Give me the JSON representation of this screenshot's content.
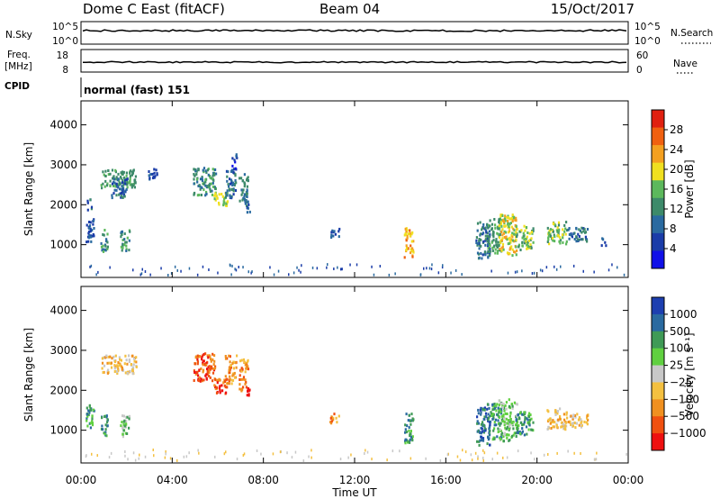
{
  "header": {
    "station": "Dome C East (fitACF)",
    "beam": "Beam 04",
    "date": "15/Oct/2017"
  },
  "strips": {
    "sky": {
      "left_label": "N.Sky",
      "left_ticks": [
        "10^5",
        "10^0"
      ],
      "right_label": "N.Search",
      "right_ticks": [
        "10^5",
        "10^0"
      ]
    },
    "freq": {
      "left_label_1": "Freq.",
      "left_label_2": "[MHz]",
      "left_ticks": [
        "18",
        "8"
      ],
      "right_label": "Nave",
      "right_ticks": [
        "60",
        "0"
      ]
    },
    "cpid": {
      "label": "CPID",
      "value": "normal (fast) 151"
    }
  },
  "colors": {
    "power": [
      "#1010e8",
      "#1a3ca8",
      "#2a6aa0",
      "#3d8a6a",
      "#5cb85c",
      "#f0e020",
      "#f4a020",
      "#f06010",
      "#e02010"
    ],
    "velocity": [
      "#ee1010",
      "#f05010",
      "#f09020",
      "#f4c040",
      "#c8c8c8",
      "#60d040",
      "#3f9a56",
      "#2a6aa0",
      "#1d3fb0"
    ]
  },
  "chart_data": [
    {
      "type": "heatmap",
      "name": "power-panel",
      "xlabel": "",
      "ylabel": "Slant Range [km]",
      "xlim": [
        0,
        24
      ],
      "ylim": [
        180,
        4600
      ],
      "x_ticks": [
        "00:00",
        "04:00",
        "08:00",
        "12:00",
        "16:00",
        "20:00",
        "00:00"
      ],
      "x_tick_values": [
        0,
        4,
        8,
        12,
        16,
        20,
        24
      ],
      "y_ticks": [
        1000,
        2000,
        3000,
        4000
      ],
      "colorbar": {
        "label": "Power [dB]",
        "ticks": [
          "4",
          "8",
          "12",
          "16",
          "20",
          "24",
          "28"
        ],
        "range": [
          0,
          32
        ]
      },
      "regions": [
        {
          "t0": 0.2,
          "t1": 0.55,
          "r0": 1050,
          "r1": 1700,
          "v": 7
        },
        {
          "t0": 0.25,
          "t1": 0.45,
          "r0": 1900,
          "r1": 2200,
          "v": 8
        },
        {
          "t0": 0.85,
          "t1": 1.15,
          "r0": 850,
          "r1": 1400,
          "v": 12
        },
        {
          "t0": 1.7,
          "t1": 2.1,
          "r0": 850,
          "r1": 1400,
          "v": 13
        },
        {
          "t0": 0.85,
          "t1": 2.4,
          "r0": 2450,
          "r1": 2900,
          "v": 14
        },
        {
          "t0": 1.3,
          "t1": 2.0,
          "r0": 2200,
          "r1": 2700,
          "v": 9
        },
        {
          "t0": 2.9,
          "t1": 3.3,
          "r0": 2650,
          "r1": 2950,
          "v": 7
        },
        {
          "t0": 4.9,
          "t1": 5.9,
          "r0": 2250,
          "r1": 2950,
          "v": 13
        },
        {
          "t0": 5.8,
          "t1": 6.4,
          "r0": 1950,
          "r1": 2350,
          "v": 18
        },
        {
          "t0": 6.3,
          "t1": 6.8,
          "r0": 2200,
          "r1": 2900,
          "v": 10
        },
        {
          "t0": 6.9,
          "t1": 7.3,
          "r0": 2000,
          "r1": 2800,
          "v": 11
        },
        {
          "t0": 7.25,
          "t1": 7.4,
          "r0": 1750,
          "r1": 2100,
          "v": 6
        },
        {
          "t0": 6.6,
          "t1": 6.8,
          "r0": 2800,
          "r1": 3300,
          "v": 6
        },
        {
          "t0": 10.9,
          "t1": 11.3,
          "r0": 1200,
          "r1": 1450,
          "v": 7
        },
        {
          "t0": 14.15,
          "t1": 14.55,
          "r0": 700,
          "r1": 1450,
          "v": 22
        },
        {
          "t0": 17.3,
          "t1": 17.9,
          "r0": 650,
          "r1": 1600,
          "v": 10
        },
        {
          "t0": 17.8,
          "t1": 18.4,
          "r0": 800,
          "r1": 1700,
          "v": 14
        },
        {
          "t0": 18.3,
          "t1": 19.1,
          "r0": 750,
          "r1": 1800,
          "v": 20
        },
        {
          "t0": 19.0,
          "t1": 19.8,
          "r0": 900,
          "r1": 1500,
          "v": 17
        },
        {
          "t0": 20.4,
          "t1": 21.3,
          "r0": 1050,
          "r1": 1600,
          "v": 16
        },
        {
          "t0": 21.3,
          "t1": 22.2,
          "r0": 1100,
          "r1": 1450,
          "v": 9
        },
        {
          "t0": 22.8,
          "t1": 23.0,
          "r0": 1000,
          "r1": 1200,
          "v": 6
        }
      ]
    },
    {
      "type": "heatmap",
      "name": "velocity-panel",
      "xlabel": "Time UT",
      "ylabel": "Slant Range [km]",
      "xlim": [
        0,
        24
      ],
      "ylim": [
        180,
        4600
      ],
      "x_ticks": [
        "00:00",
        "04:00",
        "08:00",
        "12:00",
        "16:00",
        "20:00",
        "00:00"
      ],
      "x_tick_values": [
        0,
        4,
        8,
        12,
        16,
        20,
        24
      ],
      "y_ticks": [
        1000,
        2000,
        3000,
        4000
      ],
      "colorbar": {
        "label": "Velocity [m s⁻¹]",
        "ticks": [
          "1000",
          "500",
          "100",
          "25",
          "−25",
          "−100",
          "−500",
          "−1000"
        ]
      },
      "regions": [
        {
          "t0": 0.2,
          "t1": 0.55,
          "r0": 1050,
          "r1": 1700,
          "v": 6
        },
        {
          "t0": 0.85,
          "t1": 1.15,
          "r0": 850,
          "r1": 1400,
          "v": 6
        },
        {
          "t0": 1.7,
          "t1": 2.1,
          "r0": 850,
          "r1": 1400,
          "v": 5
        },
        {
          "t0": 0.85,
          "t1": 2.4,
          "r0": 2450,
          "r1": 2900,
          "v": 3
        },
        {
          "t0": 4.9,
          "t1": 5.9,
          "r0": 2250,
          "r1": 2950,
          "v": 1
        },
        {
          "t0": 5.8,
          "t1": 6.4,
          "r0": 1950,
          "r1": 2350,
          "v": 1
        },
        {
          "t0": 6.3,
          "t1": 6.8,
          "r0": 2200,
          "r1": 2900,
          "v": 2
        },
        {
          "t0": 6.9,
          "t1": 7.3,
          "r0": 2000,
          "r1": 2800,
          "v": 2
        },
        {
          "t0": 7.25,
          "t1": 7.4,
          "r0": 1750,
          "r1": 2100,
          "v": 0
        },
        {
          "t0": 10.9,
          "t1": 11.3,
          "r0": 1200,
          "r1": 1450,
          "v": 2
        },
        {
          "t0": 14.15,
          "t1": 14.55,
          "r0": 700,
          "r1": 1450,
          "v": 6
        },
        {
          "t0": 17.3,
          "t1": 17.9,
          "r0": 650,
          "r1": 1600,
          "v": 7
        },
        {
          "t0": 17.8,
          "t1": 18.4,
          "r0": 800,
          "r1": 1700,
          "v": 6
        },
        {
          "t0": 18.3,
          "t1": 19.1,
          "r0": 750,
          "r1": 1800,
          "v": 5
        },
        {
          "t0": 19.0,
          "t1": 19.8,
          "r0": 900,
          "r1": 1500,
          "v": 6
        },
        {
          "t0": 20.4,
          "t1": 21.3,
          "r0": 1050,
          "r1": 1600,
          "v": 3
        },
        {
          "t0": 21.3,
          "t1": 22.2,
          "r0": 1100,
          "r1": 1450,
          "v": 3
        }
      ]
    }
  ]
}
